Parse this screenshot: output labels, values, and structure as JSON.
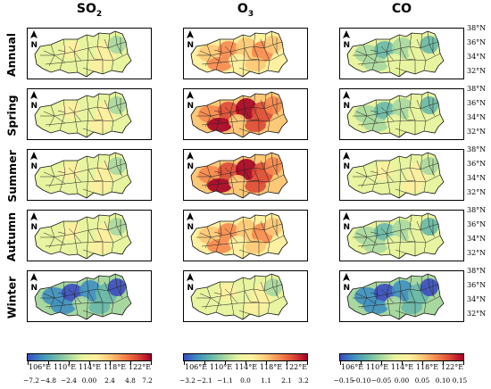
{
  "columns": [
    {
      "key": "so2",
      "title_main": "SO",
      "title_sub": "2"
    },
    {
      "key": "o3",
      "title_main": "O",
      "title_sub": "3"
    },
    {
      "key": "co",
      "title_main": "CO",
      "title_sub": ""
    }
  ],
  "rows": [
    "Annual",
    "Spring",
    "Summer",
    "Autumn",
    "Winter"
  ],
  "north_label": "N",
  "lat_ticks": [
    "38°N",
    "36°N",
    "34°N",
    "32°N"
  ],
  "lon_ticks": [
    "106°E",
    "110°E",
    "114°E",
    "118°E",
    "122°E"
  ],
  "colorbars": [
    {
      "ticks": [
        "−7.2",
        "−4.8",
        "−2.4",
        "0.00",
        "2.4",
        "4.8",
        "7.2"
      ]
    },
    {
      "ticks": [
        "−3.2",
        "−2.1",
        "−1.1",
        "0.0",
        "1.1",
        "2.1",
        "3.2"
      ]
    },
    {
      "ticks": [
        "−0.15",
        "−0.10",
        "−0.05",
        "0.00",
        "0.05",
        "0.10",
        "0.15"
      ]
    }
  ],
  "colormap": [
    "#3b4cc0",
    "#3f8fc0",
    "#68b7a8",
    "#a8d8a0",
    "#e8f4a0",
    "#fdf0a0",
    "#fdc877",
    "#f6884f",
    "#dc4a36",
    "#a50026"
  ],
  "map_data": {
    "so2": {
      "Annual": "low-pos",
      "Spring": "low-pos",
      "Summer": "low-pos",
      "Autumn": "low-pos",
      "Winter": "neg"
    },
    "o3": {
      "Annual": "pos",
      "Spring": "high-pos",
      "Summer": "high-pos",
      "Autumn": "pos",
      "Winter": "low-pos"
    },
    "co": {
      "Annual": "low-neg",
      "Spring": "low-neg",
      "Summer": "low-pos",
      "Autumn": "low-neg",
      "Winter": "neg"
    }
  }
}
